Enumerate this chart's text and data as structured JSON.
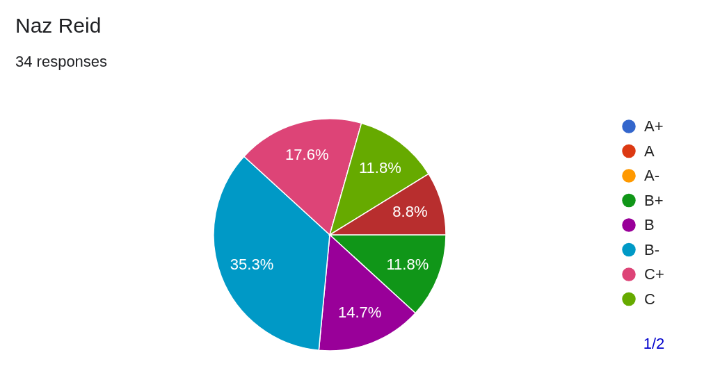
{
  "chart_data": {
    "type": "pie",
    "title": "Naz Reid",
    "subtitle": "34 responses",
    "categories": [
      "A+",
      "A",
      "A-",
      "B+",
      "B",
      "B-",
      "C+",
      "C",
      null
    ],
    "values": [
      0,
      0,
      0,
      11.8,
      14.7,
      35.3,
      17.6,
      11.8,
      8.8
    ],
    "colors": [
      "#3366cc",
      "#dc3912",
      "#ff9900",
      "#109618",
      "#990099",
      "#0099c6",
      "#dd4477",
      "#66aa00",
      "#b82e2e"
    ],
    "value_labels": [
      null,
      null,
      null,
      "11.8%",
      "14.7%",
      "35.3%",
      "17.6%",
      "11.8%",
      "8.8%"
    ],
    "legend": "right",
    "annotations": [
      "1/2"
    ]
  }
}
